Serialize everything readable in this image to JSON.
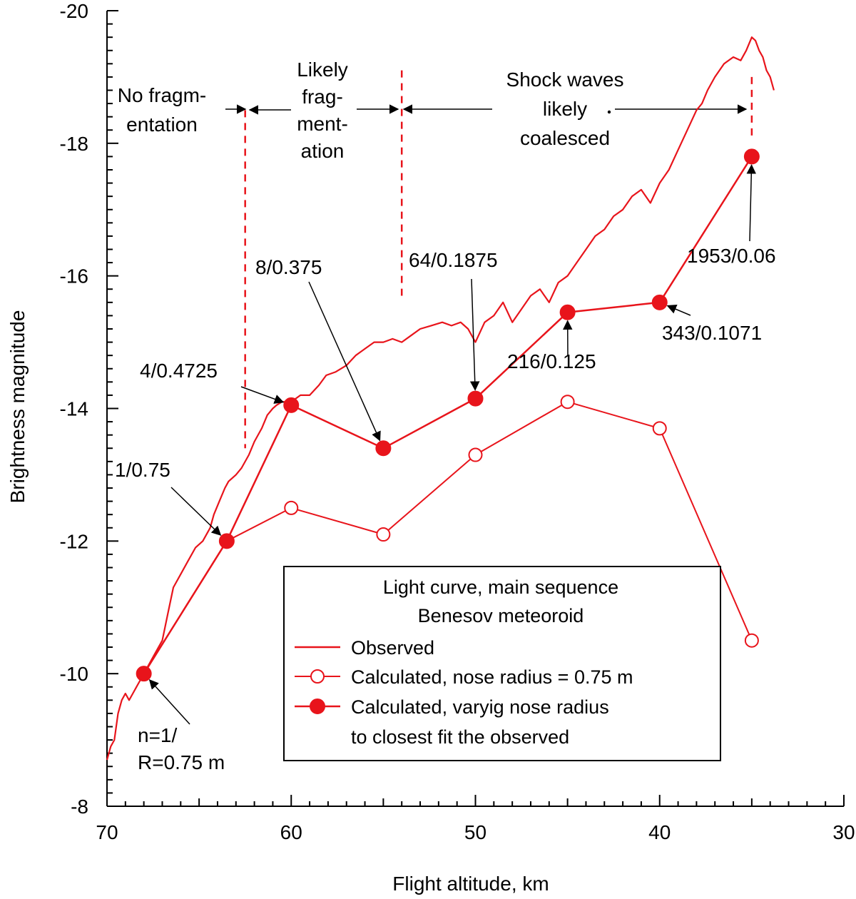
{
  "chart_data": {
    "type": "line",
    "xlabel": "Flight altitude, km",
    "ylabel": "Brightness magnitude",
    "xlim": [
      70,
      30
    ],
    "ylim": [
      -8,
      -20
    ],
    "xticks": [
      "70",
      "60",
      "50",
      "40",
      "30"
    ],
    "yticks": [
      "-8",
      "-10",
      "-12",
      "-14",
      "-16",
      "-18",
      "-20"
    ],
    "grid": false,
    "legend": {
      "placement": "lower-right",
      "title_lines": [
        "Light curve, main sequence",
        "Benesov meteoroid"
      ],
      "entries": [
        {
          "label": "Observed"
        },
        {
          "label": "Calculated, nose radius = 0.75 m"
        },
        {
          "label": "Calculated, varyig nose radius",
          "label2": "to closest fit the observed"
        }
      ]
    },
    "series": [
      {
        "name": "Observed",
        "style": "line",
        "color": "#e8141b",
        "x": [
          70.0,
          69.8,
          69.6,
          69.4,
          69.2,
          69.0,
          68.8,
          68.6,
          68.4,
          68.2,
          68.0,
          67.8,
          67.4,
          67.0,
          66.7,
          66.4,
          66.0,
          65.6,
          65.2,
          64.8,
          64.4,
          64.2,
          63.9,
          63.6,
          63.4,
          63.0,
          62.7,
          62.3,
          62.0,
          61.6,
          61.3,
          61.0,
          60.8,
          60.5,
          60.3,
          60.0,
          59.5,
          59.0,
          58.5,
          58.1,
          57.6,
          57.0,
          56.5,
          56.0,
          55.5,
          55.0,
          54.5,
          54.0,
          53.5,
          53.0,
          52.4,
          51.8,
          51.3,
          50.8,
          50.4,
          50.0,
          49.5,
          49.0,
          48.5,
          48.0,
          47.5,
          47.0,
          46.5,
          46.0,
          45.5,
          45.0,
          44.5,
          44.0,
          43.5,
          43.0,
          42.5,
          42.0,
          41.5,
          41.0,
          40.5,
          40.0,
          39.5,
          39.0,
          38.5,
          38.0,
          37.7,
          37.4,
          37.0,
          36.5,
          36.0,
          35.6,
          35.3,
          35.0,
          34.8,
          34.6,
          34.4,
          34.2,
          34.0,
          33.8
        ],
        "y": [
          -8.7,
          -8.9,
          -9.0,
          -9.4,
          -9.6,
          -9.7,
          -9.6,
          -9.7,
          -9.8,
          -9.9,
          -10.0,
          -10.1,
          -10.3,
          -10.5,
          -10.9,
          -11.3,
          -11.5,
          -11.7,
          -11.9,
          -12.0,
          -12.2,
          -12.4,
          -12.6,
          -12.8,
          -12.9,
          -13.0,
          -13.1,
          -13.3,
          -13.5,
          -13.7,
          -13.9,
          -14.0,
          -14.05,
          -14.1,
          -14.1,
          -14.1,
          -14.2,
          -14.2,
          -14.35,
          -14.5,
          -14.55,
          -14.65,
          -14.8,
          -14.9,
          -15.0,
          -15.0,
          -15.05,
          -15.0,
          -15.1,
          -15.2,
          -15.25,
          -15.3,
          -15.25,
          -15.3,
          -15.2,
          -15.0,
          -15.3,
          -15.4,
          -15.6,
          -15.3,
          -15.5,
          -15.7,
          -15.8,
          -15.6,
          -15.9,
          -16.0,
          -16.2,
          -16.4,
          -16.6,
          -16.7,
          -16.9,
          -17.0,
          -17.2,
          -17.3,
          -17.1,
          -17.4,
          -17.6,
          -17.9,
          -18.2,
          -18.5,
          -18.6,
          -18.8,
          -19.0,
          -19.2,
          -19.3,
          -19.25,
          -19.4,
          -19.6,
          -19.55,
          -19.4,
          -19.3,
          -19.1,
          -19.0,
          -18.8
        ]
      },
      {
        "name": "Calculated, nose radius = 0.75 m",
        "style": "open",
        "color": "#e8141b",
        "x": [
          68.0,
          63.5,
          60.0,
          55.0,
          50.0,
          45.0,
          40.0,
          35.0
        ],
        "y": [
          -10.0,
          -12.0,
          -12.5,
          -12.1,
          -13.3,
          -14.1,
          -13.7,
          -10.5
        ]
      },
      {
        "name": "Calculated, varyig nose radius",
        "style": "filled",
        "color": "#e8141b",
        "x": [
          68.0,
          63.5,
          60.0,
          55.0,
          50.0,
          45.0,
          40.0,
          35.0
        ],
        "y": [
          -10.0,
          -12.0,
          -14.05,
          -13.4,
          -14.15,
          -15.45,
          -15.6,
          -17.8
        ]
      }
    ],
    "annotations": [
      {
        "lines": [
          "n=1/",
          "R=0.75 m"
        ]
      },
      {
        "lines": [
          "1/0.75"
        ]
      },
      {
        "lines": [
          "4/0.4725"
        ]
      },
      {
        "lines": [
          "8/0.375"
        ]
      },
      {
        "lines": [
          "64/0.1875"
        ]
      },
      {
        "lines": [
          "216/0.125"
        ]
      },
      {
        "lines": [
          "343/0.1071"
        ]
      },
      {
        "lines": [
          "1953/0.06"
        ]
      }
    ],
    "regions": [
      {
        "lines": [
          "No fragm-",
          "entation"
        ]
      },
      {
        "lines": [
          "Likely",
          "frag-",
          "ment-",
          "ation"
        ]
      },
      {
        "lines": [
          "Shock waves",
          "likely",
          "coalesced"
        ]
      }
    ],
    "boundary_x": [
      62.5,
      54.0,
      35.0
    ]
  }
}
